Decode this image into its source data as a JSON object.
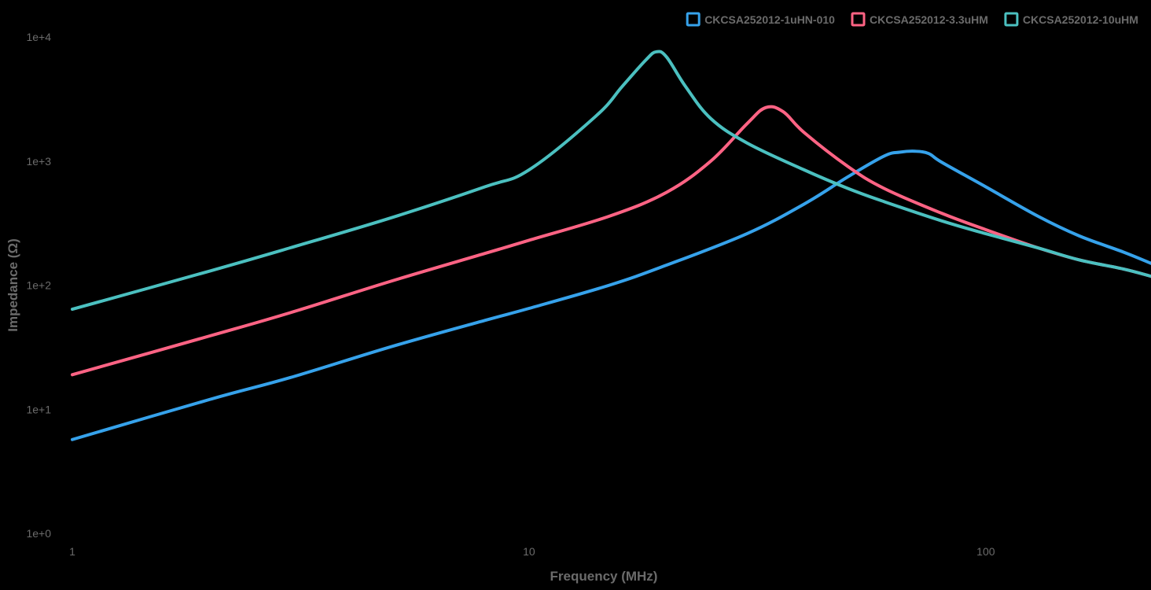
{
  "chart_data": {
    "type": "line",
    "title": "",
    "xlabel": "Frequency (MHz)",
    "ylabel": "Impedance (Ω)",
    "x_scale": "log",
    "y_scale": "log",
    "xlim": [
      1,
      230
    ],
    "ylim": [
      1,
      10000
    ],
    "x_ticks": [
      {
        "value": 1,
        "label": "1"
      },
      {
        "value": 10,
        "label": "10"
      },
      {
        "value": 100,
        "label": "100"
      }
    ],
    "y_ticks": [
      {
        "value": 1,
        "label": "1e+0"
      },
      {
        "value": 10,
        "label": "1e+1"
      },
      {
        "value": 100,
        "label": "1e+2"
      },
      {
        "value": 1000,
        "label": "1e+3"
      },
      {
        "value": 10000,
        "label": "1e+4"
      }
    ],
    "grid": false,
    "legend_position": "top-right",
    "series": [
      {
        "name": "CKCSA252012-1uHN-010",
        "color": "#36a2eb",
        "x": [
          1,
          2,
          3,
          5,
          8,
          10,
          15,
          20,
          30,
          40,
          50,
          60,
          65,
          70,
          75,
          80,
          100,
          130,
          160,
          200,
          230
        ],
        "y": [
          5.7,
          12,
          18,
          32,
          52,
          65,
          100,
          145,
          260,
          450,
          750,
          1100,
          1180,
          1200,
          1150,
          980,
          620,
          360,
          250,
          185,
          150
        ]
      },
      {
        "name": "CKCSA252012-3.3uHM",
        "color": "#ff6384",
        "x": [
          1,
          2,
          3,
          5,
          8,
          10,
          15,
          20,
          25,
          30,
          33,
          36,
          40,
          50,
          60,
          80,
          100,
          130,
          160,
          200,
          230
        ],
        "y": [
          19,
          39,
          60,
          108,
          180,
          230,
          360,
          560,
          1000,
          2000,
          2700,
          2500,
          1700,
          900,
          600,
          380,
          280,
          200,
          160,
          135,
          118
        ]
      },
      {
        "name": "CKCSA252012-10uHM",
        "color": "#4bc0c0",
        "x": [
          1,
          2,
          3,
          5,
          8,
          10,
          14,
          16,
          18,
          19,
          20,
          22,
          25,
          30,
          40,
          50,
          60,
          80,
          100,
          130,
          160,
          200,
          230
        ],
        "y": [
          64,
          130,
          200,
          350,
          620,
          850,
          2300,
          4000,
          6500,
          7600,
          6900,
          4000,
          2200,
          1400,
          850,
          600,
          470,
          330,
          260,
          200,
          160,
          135,
          118
        ]
      }
    ]
  }
}
